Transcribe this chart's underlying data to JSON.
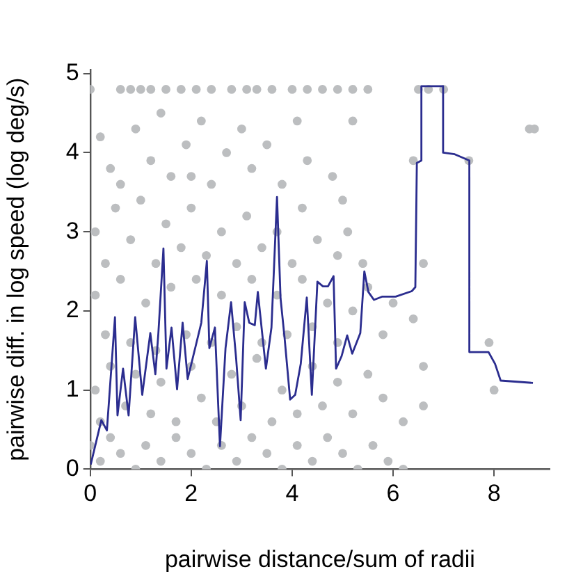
{
  "chart_data": {
    "type": "scatter",
    "xlabel": "pairwise distance/sum of radii",
    "ylabel": "pairwise diff. in log speed (log deg/s)",
    "xlim": [
      0,
      9.1
    ],
    "ylim": [
      0,
      5.05
    ],
    "xticks": [
      0,
      2,
      4,
      6,
      8
    ],
    "yticks": [
      0,
      1,
      2,
      3,
      4,
      5
    ],
    "grid": false,
    "legend": false,
    "marker": "circle",
    "series": [
      {
        "color": "#bcbec0",
        "x": [
          0.0,
          0.6,
          0.8,
          1.0,
          1.2,
          1.5,
          1.8,
          2.1,
          2.4,
          2.8,
          3.1,
          3.3,
          3.6,
          4.0,
          4.3,
          4.6,
          4.9,
          5.2,
          5.5,
          6.5,
          6.7,
          0.2,
          0.6,
          0.9,
          1.2,
          1.4,
          1.6,
          1.9,
          2.2,
          2.4,
          2.7,
          3.0,
          3.2,
          3.5,
          3.8,
          4.1,
          4.3,
          4.8,
          5.2,
          0.4,
          2.0,
          0.1,
          0.3,
          0.5,
          0.8,
          1.0,
          1.3,
          1.5,
          1.8,
          2.0,
          2.3,
          2.6,
          2.9,
          3.1,
          3.4,
          3.7,
          4.0,
          4.2,
          4.5,
          4.9,
          5.1,
          5.4,
          5.0,
          6.4,
          7.5,
          6.6,
          0.1,
          0.3,
          0.6,
          0.8,
          1.1,
          1.3,
          1.6,
          1.9,
          2.1,
          2.4,
          2.6,
          2.9,
          3.2,
          3.4,
          3.7,
          3.9,
          4.2,
          4.4,
          4.7,
          4.9,
          5.2,
          5.5,
          5.8,
          6.0,
          6.4,
          0.1,
          0.2,
          0.4,
          0.7,
          0.9,
          1.2,
          1.4,
          1.7,
          2.0,
          2.2,
          2.5,
          2.8,
          3.0,
          3.3,
          3.6,
          3.8,
          4.1,
          4.4,
          4.6,
          4.9,
          5.2,
          5.5,
          5.8,
          6.2,
          6.6,
          6.6,
          7.9,
          0.0,
          0.2,
          0.4,
          0.6,
          0.9,
          1.1,
          1.4,
          1.7,
          2.0,
          2.3,
          2.6,
          2.9,
          3.2,
          3.5,
          3.8,
          4.1,
          4.4,
          4.7,
          5.0,
          5.3,
          5.6,
          5.9,
          6.2,
          8.7,
          8.8,
          8.0,
          7.0
        ],
        "values": [
          4.8,
          4.8,
          4.8,
          4.8,
          4.8,
          4.8,
          4.8,
          4.8,
          4.8,
          4.8,
          4.8,
          4.8,
          4.8,
          4.8,
          4.8,
          4.8,
          4.8,
          4.8,
          4.8,
          4.8,
          4.8,
          4.2,
          3.6,
          4.3,
          3.9,
          4.5,
          3.7,
          4.1,
          4.4,
          3.6,
          4.0,
          4.3,
          3.8,
          4.1,
          3.6,
          4.4,
          3.9,
          3.7,
          4.4,
          3.8,
          3.7,
          3.0,
          2.6,
          3.3,
          2.9,
          3.4,
          2.6,
          3.1,
          2.8,
          3.3,
          2.7,
          3.0,
          2.6,
          3.2,
          2.8,
          3.0,
          2.6,
          3.3,
          2.9,
          2.7,
          3.0,
          2.6,
          3.4,
          3.9,
          3.9,
          2.6,
          2.2,
          1.7,
          2.4,
          1.6,
          2.1,
          1.5,
          2.3,
          1.7,
          2.4,
          1.6,
          2.2,
          1.8,
          2.4,
          1.6,
          2.2,
          1.7,
          2.4,
          1.8,
          2.1,
          1.6,
          2.0,
          2.3,
          1.7,
          2.1,
          1.9,
          1.0,
          0.6,
          1.3,
          0.8,
          1.2,
          0.7,
          1.1,
          0.6,
          1.3,
          0.9,
          0.6,
          1.2,
          0.8,
          1.4,
          0.6,
          1.0,
          0.7,
          1.3,
          0.8,
          1.1,
          0.7,
          1.2,
          0.9,
          0.6,
          0.8,
          1.3,
          1.6,
          0.3,
          0.1,
          0.4,
          0.2,
          0.0,
          0.3,
          0.1,
          0.4,
          0.2,
          0.0,
          0.3,
          0.1,
          0.4,
          0.2,
          0.0,
          0.3,
          0.1,
          0.4,
          0.2,
          0.0,
          0.3,
          0.1,
          0.0,
          4.3,
          4.3,
          1.0,
          4.8
        ]
      },
      {
        "type": "line",
        "color": "#2b2d8f",
        "marker": "none",
        "x": [
          0.01,
          0.22,
          0.33,
          0.49,
          0.54,
          0.65,
          0.76,
          0.89,
          1.03,
          1.19,
          1.29,
          1.35,
          1.45,
          1.51,
          1.61,
          1.72,
          1.83,
          1.93,
          2.09,
          2.2,
          2.31,
          2.36,
          2.47,
          2.57,
          2.68,
          2.79,
          2.89,
          2.98,
          3.06,
          3.15,
          3.26,
          3.32,
          3.48,
          3.59,
          3.7,
          3.77,
          3.85,
          3.96,
          4.06,
          4.17,
          4.29,
          4.39,
          4.5,
          4.61,
          4.71,
          4.82,
          4.87,
          4.98,
          5.09,
          5.19,
          5.35,
          5.43,
          5.51,
          5.62,
          5.78,
          6.05,
          6.37,
          6.44,
          6.47,
          6.56,
          6.56,
          6.99,
          6.99,
          7.22,
          7.51,
          7.51,
          7.89,
          8.02,
          8.13,
          8.77
        ],
        "values": [
          0.06,
          0.62,
          0.49,
          1.92,
          0.68,
          1.27,
          0.68,
          1.92,
          0.94,
          1.72,
          1.2,
          1.72,
          2.79,
          1.27,
          1.79,
          1.01,
          1.85,
          1.14,
          1.56,
          1.85,
          2.63,
          1.53,
          1.79,
          0.29,
          1.53,
          2.11,
          1.4,
          0.62,
          2.11,
          1.85,
          1.82,
          2.24,
          1.27,
          1.79,
          3.44,
          2.16,
          1.66,
          0.88,
          0.94,
          1.33,
          2.17,
          0.94,
          2.37,
          2.31,
          2.31,
          2.44,
          1.27,
          1.43,
          1.69,
          1.46,
          1.72,
          2.5,
          2.24,
          2.14,
          2.18,
          2.18,
          2.25,
          2.3,
          3.87,
          3.9,
          4.84,
          4.84,
          4.0,
          3.98,
          3.9,
          1.48,
          1.48,
          1.33,
          1.12,
          1.09
        ]
      }
    ]
  }
}
